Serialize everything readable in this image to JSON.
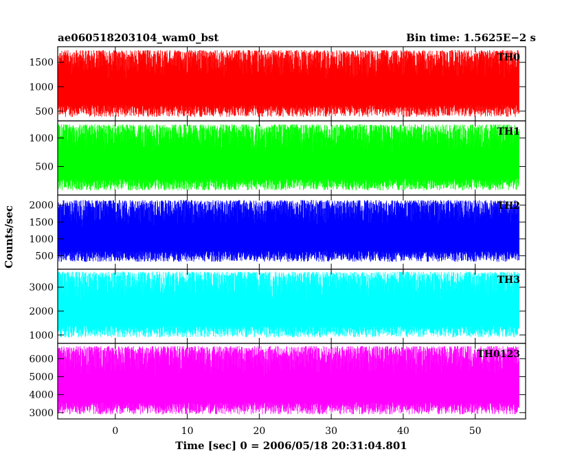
{
  "header": {
    "left_title": "ae060518203104_wam0_bst",
    "right_title": "Bin time: 1.5625E−2 s"
  },
  "chart_data": {
    "type": "line",
    "title": "ae060518203104_wam0_bst",
    "subtitle": "Bin time: 1.5625E−2 s",
    "xlabel": "Time [sec] 0 = 2006/05/18 20:31:04.801",
    "ylabel": "Counts/sec",
    "xlim": [
      -8.0,
      57.0
    ],
    "x_ticks": [
      0,
      10,
      20,
      30,
      40,
      50
    ],
    "x_data_range": [
      -7.9,
      56.1
    ],
    "bin_time_s": 0.015625,
    "grid": false,
    "legend": "none (channel labels at top-right of each panel)",
    "panels": [
      {
        "name": "TH0",
        "color": "#ff0000",
        "ylim": [
          300,
          1820
        ],
        "y_ticks": [
          500,
          1000,
          1500
        ],
        "typical_min": 380,
        "typical_max": 1750,
        "mean": 1000
      },
      {
        "name": "TH1",
        "color": "#00ff00",
        "ylim": [
          0,
          1300
        ],
        "y_ticks": [
          500,
          1000
        ],
        "typical_min": 80,
        "typical_max": 1240,
        "mean": 680
      },
      {
        "name": "TH2",
        "color": "#0000ff",
        "ylim": [
          100,
          2300
        ],
        "y_ticks": [
          500,
          1000,
          1500,
          2000
        ],
        "typical_min": 320,
        "typical_max": 2150,
        "mean": 1150
      },
      {
        "name": "TH3",
        "color": "#00ffff",
        "ylim": [
          650,
          3750
        ],
        "y_ticks": [
          1000,
          2000,
          3000
        ],
        "typical_min": 900,
        "typical_max": 3650,
        "mean": 2250
      },
      {
        "name": "TH0123",
        "color": "#ff00ff",
        "ylim": [
          2650,
          6850
        ],
        "y_ticks": [
          3000,
          4000,
          5000,
          6000
        ],
        "typical_min": 2900,
        "typical_max": 6700,
        "mean": 4700
      }
    ]
  }
}
